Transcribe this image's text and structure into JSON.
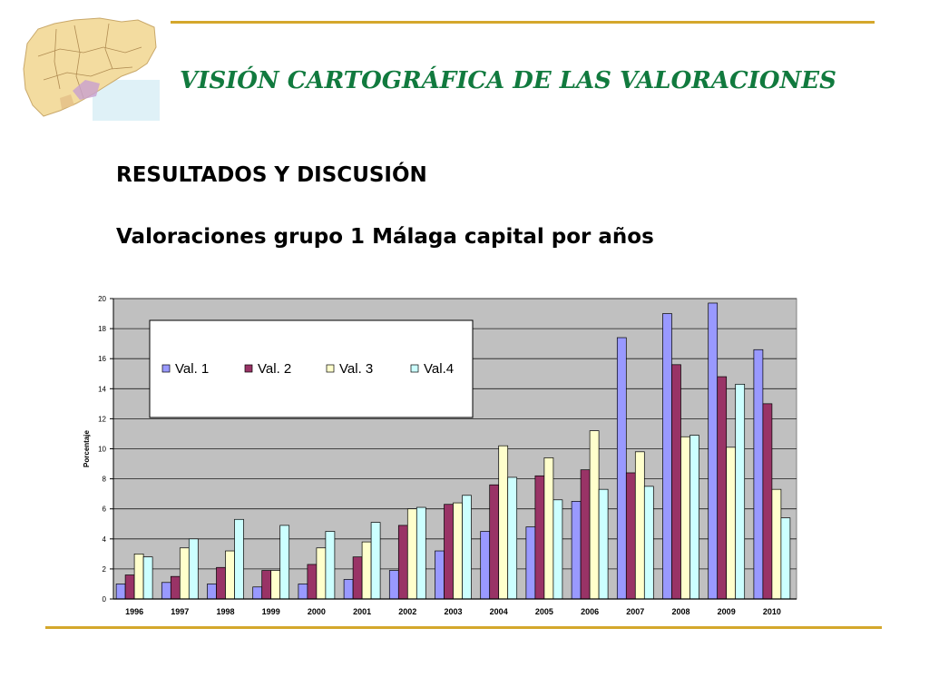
{
  "slide": {
    "title": "VISIÓN CARTOGRÁFICA DE LAS VALORACIONES",
    "section": "RESULTADOS Y DISCUSIÓN",
    "subtitle": "Valoraciones grupo 1 Málaga capital por años"
  },
  "colors": {
    "title": "#117a3e",
    "rule": "#d4a72c",
    "plot_bg": "#c0c0c0"
  },
  "chart_data": {
    "type": "bar",
    "title": "",
    "xlabel": "",
    "ylabel": "Porcentaje",
    "ylim": [
      0,
      20
    ],
    "yticks": [
      0,
      2,
      4,
      6,
      8,
      10,
      12,
      14,
      16,
      18,
      20
    ],
    "grid": true,
    "legend_position": "top-left",
    "categories": [
      "1996",
      "1997",
      "1998",
      "1999",
      "2000",
      "2001",
      "2002",
      "2003",
      "2004",
      "2005",
      "2006",
      "2007",
      "2008",
      "2009",
      "2010"
    ],
    "series": [
      {
        "name": "Val. 1",
        "color": "#9999ff",
        "values": [
          1.0,
          1.1,
          1.0,
          0.8,
          1.0,
          1.3,
          1.9,
          3.2,
          4.5,
          4.8,
          6.5,
          17.4,
          19.0,
          19.7,
          16.6
        ]
      },
      {
        "name": "Val. 2",
        "color": "#993366",
        "values": [
          1.6,
          1.5,
          2.1,
          1.9,
          2.3,
          2.8,
          4.9,
          6.3,
          7.6,
          8.2,
          8.6,
          8.4,
          15.6,
          14.8,
          13.0
        ]
      },
      {
        "name": "Val. 3",
        "color": "#ffffcc",
        "values": [
          3.0,
          3.4,
          3.2,
          1.9,
          3.4,
          3.8,
          6.0,
          6.4,
          10.2,
          9.4,
          11.2,
          9.8,
          10.8,
          10.1,
          7.3
        ]
      },
      {
        "name": "Val.4",
        "color": "#ccffff",
        "values": [
          2.8,
          4.0,
          5.3,
          4.9,
          4.5,
          5.1,
          6.1,
          6.9,
          8.1,
          6.6,
          7.3,
          7.5,
          10.9,
          14.3,
          5.4
        ]
      }
    ]
  }
}
